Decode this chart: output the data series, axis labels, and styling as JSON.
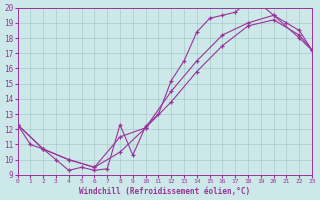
{
  "xlabel": "Windchill (Refroidissement éolien,°C)",
  "bg_color": "#cce8e8",
  "grid_color": "#aacccc",
  "line_color": "#993399",
  "xlim": [
    0,
    23
  ],
  "ylim": [
    9,
    20
  ],
  "xticks": [
    0,
    1,
    2,
    3,
    4,
    5,
    6,
    7,
    8,
    9,
    10,
    11,
    12,
    13,
    14,
    15,
    16,
    17,
    18,
    19,
    20,
    21,
    22,
    23
  ],
  "yticks": [
    9,
    10,
    11,
    12,
    13,
    14,
    15,
    16,
    17,
    18,
    19,
    20
  ],
  "line1": {
    "x": [
      0,
      1,
      2,
      3,
      4,
      5,
      6,
      7,
      8,
      9,
      10,
      11,
      12,
      13,
      14,
      15,
      16,
      17,
      18,
      19,
      20,
      21,
      22,
      23
    ],
    "y": [
      12.3,
      11.0,
      10.7,
      10.0,
      9.3,
      9.5,
      9.3,
      9.4,
      12.3,
      10.3,
      12.2,
      13.0,
      15.2,
      16.5,
      18.4,
      19.3,
      19.5,
      19.7,
      20.4,
      20.2,
      19.5,
      19.0,
      18.5,
      17.2
    ]
  },
  "line2": {
    "x": [
      0,
      2,
      4,
      6,
      8,
      10,
      12,
      14,
      16,
      18,
      20,
      22,
      23
    ],
    "y": [
      12.3,
      10.7,
      10.0,
      9.5,
      10.5,
      12.1,
      13.8,
      15.8,
      17.5,
      18.8,
      19.2,
      18.2,
      17.2
    ]
  },
  "line3": {
    "x": [
      0,
      2,
      4,
      6,
      8,
      10,
      12,
      14,
      16,
      18,
      20,
      22,
      23
    ],
    "y": [
      12.3,
      10.7,
      10.0,
      9.5,
      11.5,
      12.1,
      14.5,
      16.5,
      18.2,
      19.0,
      19.5,
      18.0,
      17.2
    ]
  }
}
